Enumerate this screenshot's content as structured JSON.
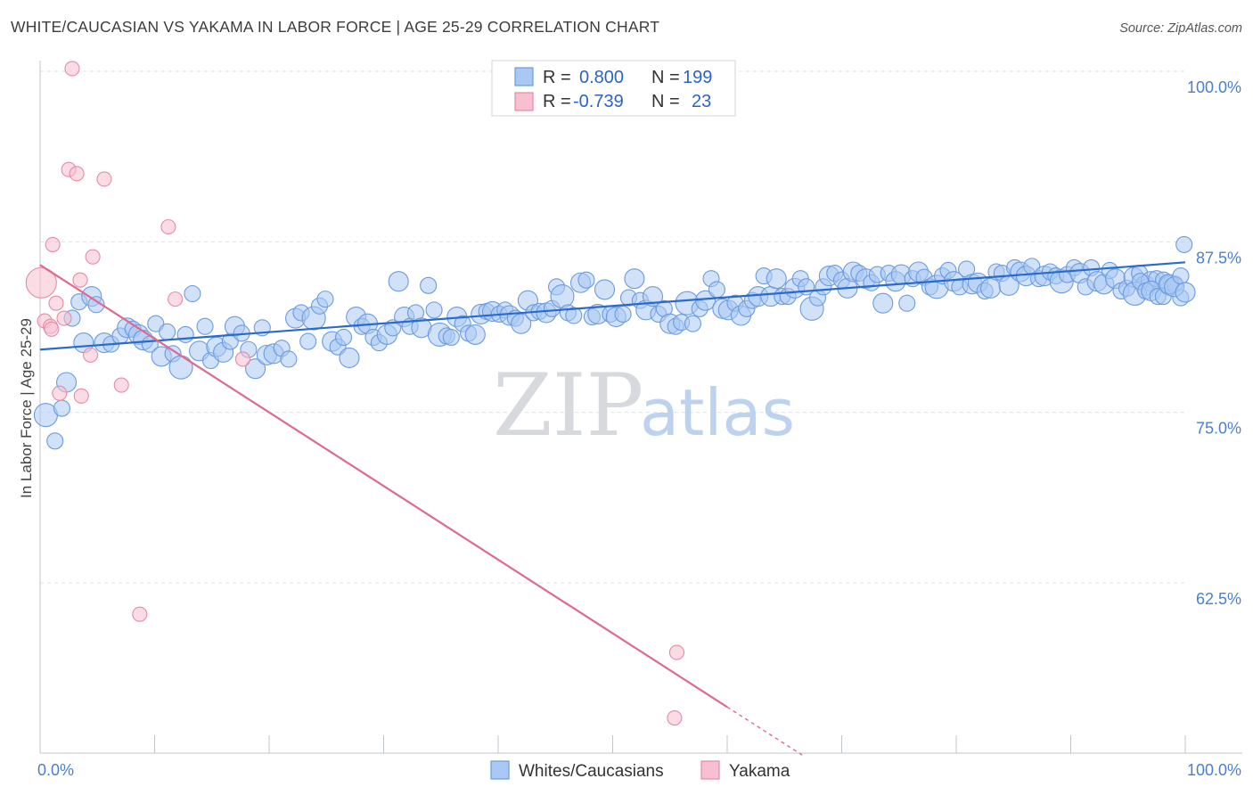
{
  "title": "WHITE/CAUCASIAN VS YAKAMA IN LABOR FORCE | AGE 25-29 CORRELATION CHART",
  "source": "Source: ZipAtlas.com",
  "watermark": {
    "zip": "ZIP",
    "atlas": "atlas"
  },
  "colors": {
    "blue_fill": "#a9c8f3",
    "blue_stroke": "#6b9be0",
    "blue_line": "#2a6acc",
    "pink_fill": "#f7bfd0",
    "pink_stroke": "#e58aa8",
    "pink_line": "#e06893",
    "grid": "#dde3ea",
    "axis": "#bfc5cc"
  },
  "legend": {
    "rows": [
      {
        "r_label": "R =",
        "r_value": "0.800",
        "n_label": "N =",
        "n_value": "199"
      },
      {
        "r_label": "R =",
        "r_value": "-0.739",
        "n_label": "N =",
        "n_value": "23"
      }
    ]
  },
  "chart_data": {
    "type": "scatter",
    "title": "WHITE/CAUCASIAN VS YAKAMA IN LABOR FORCE | AGE 25-29 CORRELATION CHART",
    "xlabel": "",
    "ylabel": "In Labor Force | Age 25-29",
    "xlim": [
      0,
      100
    ],
    "ylim": [
      50,
      100
    ],
    "x_tick_labels": [
      "0.0%",
      "100.0%"
    ],
    "y_ticks": [
      62.5,
      75.0,
      87.5,
      100.0
    ],
    "y_tick_labels": [
      "62.5%",
      "75.0%",
      "87.5%",
      "100.0%"
    ],
    "grid": true,
    "legend_position": "top-center",
    "series": [
      {
        "name": "Whites/Caucasians",
        "trend": {
          "x": [
            0,
            100
          ],
          "y": [
            79.6,
            86.0
          ]
        },
        "points": [
          [
            0.5,
            74.8
          ],
          [
            1.3,
            72.9
          ],
          [
            1.9,
            75.3
          ],
          [
            2.3,
            77.2
          ],
          [
            2.8,
            81.9
          ],
          [
            3.4,
            83.1
          ],
          [
            3.8,
            80.1
          ],
          [
            4.5,
            83.5
          ],
          [
            4.9,
            82.9
          ],
          [
            5.6,
            80.1
          ],
          [
            6.2,
            80.0
          ],
          [
            7.0,
            80.6
          ],
          [
            7.6,
            81.2
          ],
          [
            8.1,
            81.1
          ],
          [
            8.6,
            80.7
          ],
          [
            9.0,
            80.3
          ],
          [
            9.6,
            80.0
          ],
          [
            10.1,
            81.5
          ],
          [
            10.6,
            79.1
          ],
          [
            11.1,
            80.9
          ],
          [
            11.6,
            79.3
          ],
          [
            12.3,
            78.3
          ],
          [
            12.7,
            80.7
          ],
          [
            13.3,
            83.7
          ],
          [
            13.9,
            79.5
          ],
          [
            14.4,
            81.3
          ],
          [
            14.9,
            78.8
          ],
          [
            15.4,
            79.8
          ],
          [
            16.0,
            79.4
          ],
          [
            16.6,
            80.2
          ],
          [
            17.0,
            81.3
          ],
          [
            17.6,
            80.8
          ],
          [
            18.2,
            79.6
          ],
          [
            18.8,
            78.2
          ],
          [
            19.4,
            81.2
          ],
          [
            19.8,
            79.2
          ],
          [
            20.4,
            79.3
          ],
          [
            21.1,
            79.7
          ],
          [
            21.7,
            78.9
          ],
          [
            22.3,
            81.9
          ],
          [
            22.8,
            82.3
          ],
          [
            23.4,
            80.2
          ],
          [
            23.9,
            81.9
          ],
          [
            24.4,
            82.8
          ],
          [
            24.9,
            83.3
          ],
          [
            25.5,
            80.2
          ],
          [
            26.0,
            79.8
          ],
          [
            26.5,
            80.5
          ],
          [
            27.0,
            79.0
          ],
          [
            27.6,
            82.0
          ],
          [
            28.1,
            81.3
          ],
          [
            28.6,
            81.5
          ],
          [
            29.1,
            80.5
          ],
          [
            29.6,
            80.1
          ],
          [
            30.3,
            80.7
          ],
          [
            30.8,
            81.2
          ],
          [
            31.3,
            84.6
          ],
          [
            31.8,
            82.0
          ],
          [
            32.3,
            81.3
          ],
          [
            32.8,
            82.3
          ],
          [
            33.3,
            81.2
          ],
          [
            33.9,
            84.3
          ],
          [
            34.4,
            82.5
          ],
          [
            34.9,
            80.7
          ],
          [
            35.5,
            80.6
          ],
          [
            35.9,
            80.5
          ],
          [
            36.4,
            82.0
          ],
          [
            36.9,
            81.5
          ],
          [
            37.4,
            80.8
          ],
          [
            38.0,
            80.7
          ],
          [
            38.5,
            82.2
          ],
          [
            39.0,
            82.4
          ],
          [
            39.5,
            82.4
          ],
          [
            40.1,
            82.2
          ],
          [
            40.6,
            82.5
          ],
          [
            41.0,
            82.1
          ],
          [
            41.5,
            81.9
          ],
          [
            42.0,
            81.5
          ],
          [
            42.6,
            83.2
          ],
          [
            43.1,
            82.3
          ],
          [
            43.6,
            82.4
          ],
          [
            44.2,
            82.3
          ],
          [
            44.7,
            82.6
          ],
          [
            45.1,
            84.2
          ],
          [
            45.6,
            83.5
          ],
          [
            46.1,
            82.3
          ],
          [
            46.6,
            82.1
          ],
          [
            47.2,
            84.5
          ],
          [
            47.7,
            84.7
          ],
          [
            48.2,
            82.0
          ],
          [
            48.7,
            82.2
          ],
          [
            49.3,
            84.0
          ],
          [
            49.8,
            82.2
          ],
          [
            50.3,
            82.0
          ],
          [
            50.9,
            82.2
          ],
          [
            51.4,
            83.4
          ],
          [
            51.9,
            84.8
          ],
          [
            52.4,
            83.2
          ],
          [
            52.9,
            82.5
          ],
          [
            53.5,
            83.5
          ],
          [
            54.0,
            82.2
          ],
          [
            54.5,
            82.6
          ],
          [
            55.0,
            81.5
          ],
          [
            55.5,
            81.3
          ],
          [
            56.0,
            81.6
          ],
          [
            56.5,
            83.0
          ],
          [
            57.0,
            81.5
          ],
          [
            57.6,
            82.6
          ],
          [
            58.1,
            83.2
          ],
          [
            58.6,
            84.8
          ],
          [
            59.1,
            84.0
          ],
          [
            59.6,
            82.6
          ],
          [
            60.1,
            82.5
          ],
          [
            60.7,
            83.0
          ],
          [
            61.2,
            82.1
          ],
          [
            61.7,
            82.6
          ],
          [
            62.2,
            83.2
          ],
          [
            62.7,
            83.5
          ],
          [
            63.2,
            85.0
          ],
          [
            63.8,
            83.5
          ],
          [
            64.3,
            84.8
          ],
          [
            64.8,
            83.5
          ],
          [
            65.3,
            83.5
          ],
          [
            65.9,
            84.1
          ],
          [
            66.4,
            84.8
          ],
          [
            66.9,
            84.2
          ],
          [
            67.4,
            82.6
          ],
          [
            67.9,
            83.4
          ],
          [
            68.4,
            84.2
          ],
          [
            68.9,
            85.0
          ],
          [
            69.4,
            85.2
          ],
          [
            70.0,
            84.7
          ],
          [
            70.5,
            84.1
          ],
          [
            71.0,
            85.3
          ],
          [
            71.5,
            85.2
          ],
          [
            72.1,
            84.8
          ],
          [
            72.6,
            84.5
          ],
          [
            73.1,
            85.1
          ],
          [
            73.6,
            83.0
          ],
          [
            74.1,
            85.2
          ],
          [
            74.7,
            84.6
          ],
          [
            75.2,
            85.1
          ],
          [
            75.7,
            83.0
          ],
          [
            76.2,
            84.8
          ],
          [
            76.7,
            85.3
          ],
          [
            77.2,
            84.9
          ],
          [
            77.7,
            84.2
          ],
          [
            78.3,
            84.2
          ],
          [
            78.8,
            85.0
          ],
          [
            79.3,
            85.4
          ],
          [
            79.8,
            84.6
          ],
          [
            80.3,
            84.2
          ],
          [
            80.9,
            85.5
          ],
          [
            81.4,
            84.4
          ],
          [
            81.9,
            84.5
          ],
          [
            82.5,
            83.9
          ],
          [
            83.0,
            84.1
          ],
          [
            83.5,
            85.3
          ],
          [
            84.0,
            85.2
          ],
          [
            84.6,
            84.3
          ],
          [
            85.1,
            85.6
          ],
          [
            85.6,
            85.3
          ],
          [
            86.1,
            85.0
          ],
          [
            86.6,
            85.7
          ],
          [
            87.2,
            84.8
          ],
          [
            87.7,
            85.0
          ],
          [
            88.2,
            85.3
          ],
          [
            88.7,
            85.0
          ],
          [
            89.2,
            84.6
          ],
          [
            89.7,
            85.1
          ],
          [
            90.3,
            85.6
          ],
          [
            90.8,
            85.2
          ],
          [
            91.3,
            84.2
          ],
          [
            91.8,
            85.6
          ],
          [
            92.3,
            84.6
          ],
          [
            92.9,
            84.4
          ],
          [
            93.4,
            85.4
          ],
          [
            93.9,
            84.8
          ],
          [
            94.4,
            83.9
          ],
          [
            94.9,
            84.1
          ],
          [
            95.5,
            84.9
          ],
          [
            96.0,
            85.2
          ],
          [
            96.5,
            84.3
          ],
          [
            97.0,
            84.6
          ],
          [
            97.5,
            84.8
          ],
          [
            98.1,
            84.7
          ],
          [
            98.6,
            84.3
          ],
          [
            99.1,
            84.4
          ],
          [
            99.6,
            83.4
          ],
          [
            100.1,
            83.7
          ],
          [
            100.6,
            84.6
          ],
          [
            101.1,
            83.9
          ],
          [
            101.6,
            83.9
          ],
          [
            102.2,
            83.5
          ],
          [
            102.7,
            83.5
          ],
          [
            103.2,
            84.4
          ],
          [
            103.7,
            84.2
          ],
          [
            104.3,
            85.0
          ],
          [
            104.8,
            83.8
          ],
          [
            99.9,
            87.3
          ]
        ]
      },
      {
        "name": "Yakama",
        "trend": {
          "x": [
            0,
            60
          ],
          "y": [
            85.8,
            53.4
          ]
        },
        "trend_dashed": {
          "x": [
            60,
            66.7
          ],
          "y": [
            53.4,
            49.8
          ]
        },
        "points": [
          [
            0.1,
            84.5
          ],
          [
            0.4,
            81.7
          ],
          [
            0.9,
            81.3
          ],
          [
            1.1,
            87.3
          ],
          [
            1.4,
            83.0
          ],
          [
            1.7,
            76.4
          ],
          [
            2.1,
            81.9
          ],
          [
            2.5,
            92.8
          ],
          [
            2.8,
            100.2
          ],
          [
            3.2,
            92.5
          ],
          [
            3.5,
            84.7
          ],
          [
            3.6,
            76.2
          ],
          [
            4.4,
            79.2
          ],
          [
            4.6,
            86.4
          ],
          [
            5.6,
            92.1
          ],
          [
            7.1,
            77.0
          ],
          [
            8.7,
            60.2
          ],
          [
            11.2,
            88.6
          ],
          [
            11.8,
            83.3
          ],
          [
            17.7,
            78.9
          ],
          [
            55.6,
            57.4
          ],
          [
            55.4,
            52.6
          ],
          [
            1.0,
            81.1
          ]
        ]
      }
    ]
  },
  "bottom_legend": {
    "items": [
      "Whites/Caucasians",
      "Yakama"
    ]
  }
}
